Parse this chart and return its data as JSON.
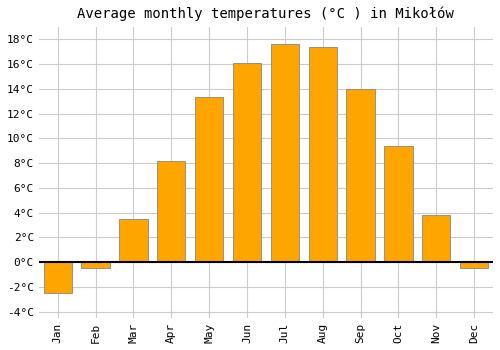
{
  "title": "Average monthly temperatures (°C ) in Mikołów",
  "months": [
    "Jan",
    "Feb",
    "Mar",
    "Apr",
    "May",
    "Jun",
    "Jul",
    "Aug",
    "Sep",
    "Oct",
    "Nov",
    "Dec"
  ],
  "values": [
    -2.5,
    -0.5,
    3.5,
    8.2,
    13.3,
    16.1,
    17.6,
    17.4,
    14.0,
    9.4,
    3.8,
    -0.5
  ],
  "bar_color": "#FFA500",
  "bar_edge_color": "#888888",
  "ylim": [
    -4.5,
    19
  ],
  "yticks": [
    -4,
    -2,
    0,
    2,
    4,
    6,
    8,
    10,
    12,
    14,
    16,
    18
  ],
  "ytick_labels": [
    "-4°C",
    "-2°C",
    "0°C",
    "2°C",
    "4°C",
    "6°C",
    "8°C",
    "10°C",
    "12°C",
    "14°C",
    "16°C",
    "18°C"
  ],
  "background_color": "#ffffff",
  "grid_color": "#cccccc",
  "title_fontsize": 10,
  "tick_fontsize": 8,
  "zero_line_color": "#000000",
  "font_family": "monospace"
}
